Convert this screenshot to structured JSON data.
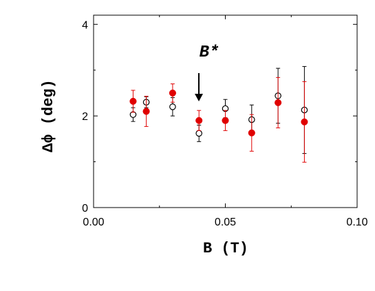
{
  "chart_data": {
    "type": "scatter",
    "xlabel": "B (T)",
    "ylabel": "Δϕ (deg)",
    "xlim": [
      0.0,
      0.1
    ],
    "ylim": [
      0,
      4.2
    ],
    "x_ticks": [
      "0.00",
      "0.05",
      "0.10"
    ],
    "y_ticks": [
      "0",
      "2",
      "4"
    ],
    "x_tick_values": [
      0.0,
      0.05,
      0.1
    ],
    "y_tick_values": [
      0,
      2,
      4
    ],
    "grid": false,
    "annotation": {
      "text": "B*",
      "x": 0.04
    },
    "series": [
      {
        "marker": "open-circle",
        "color": "#000000",
        "points": [
          {
            "x": 0.015,
            "y": 2.03,
            "err": 0.15
          },
          {
            "x": 0.02,
            "y": 2.3,
            "err": 0.12
          },
          {
            "x": 0.03,
            "y": 2.2,
            "err": 0.2
          },
          {
            "x": 0.04,
            "y": 1.62,
            "err": 0.18
          },
          {
            "x": 0.05,
            "y": 2.16,
            "err": 0.2
          },
          {
            "x": 0.06,
            "y": 1.92,
            "err": 0.32
          },
          {
            "x": 0.07,
            "y": 2.44,
            "err": 0.6
          },
          {
            "x": 0.08,
            "y": 2.13,
            "err": 0.95
          }
        ]
      },
      {
        "marker": "filled-circle",
        "color": "#e00000",
        "points": [
          {
            "x": 0.015,
            "y": 2.32,
            "err": 0.24
          },
          {
            "x": 0.02,
            "y": 2.1,
            "err": 0.33
          },
          {
            "x": 0.03,
            "y": 2.5,
            "err": 0.2
          },
          {
            "x": 0.04,
            "y": 1.9,
            "err": 0.22
          },
          {
            "x": 0.05,
            "y": 1.9,
            "err": 0.22
          },
          {
            "x": 0.06,
            "y": 1.63,
            "err": 0.4
          },
          {
            "x": 0.07,
            "y": 2.29,
            "err": 0.55
          },
          {
            "x": 0.08,
            "y": 1.87,
            "err": 0.88
          }
        ]
      }
    ]
  }
}
